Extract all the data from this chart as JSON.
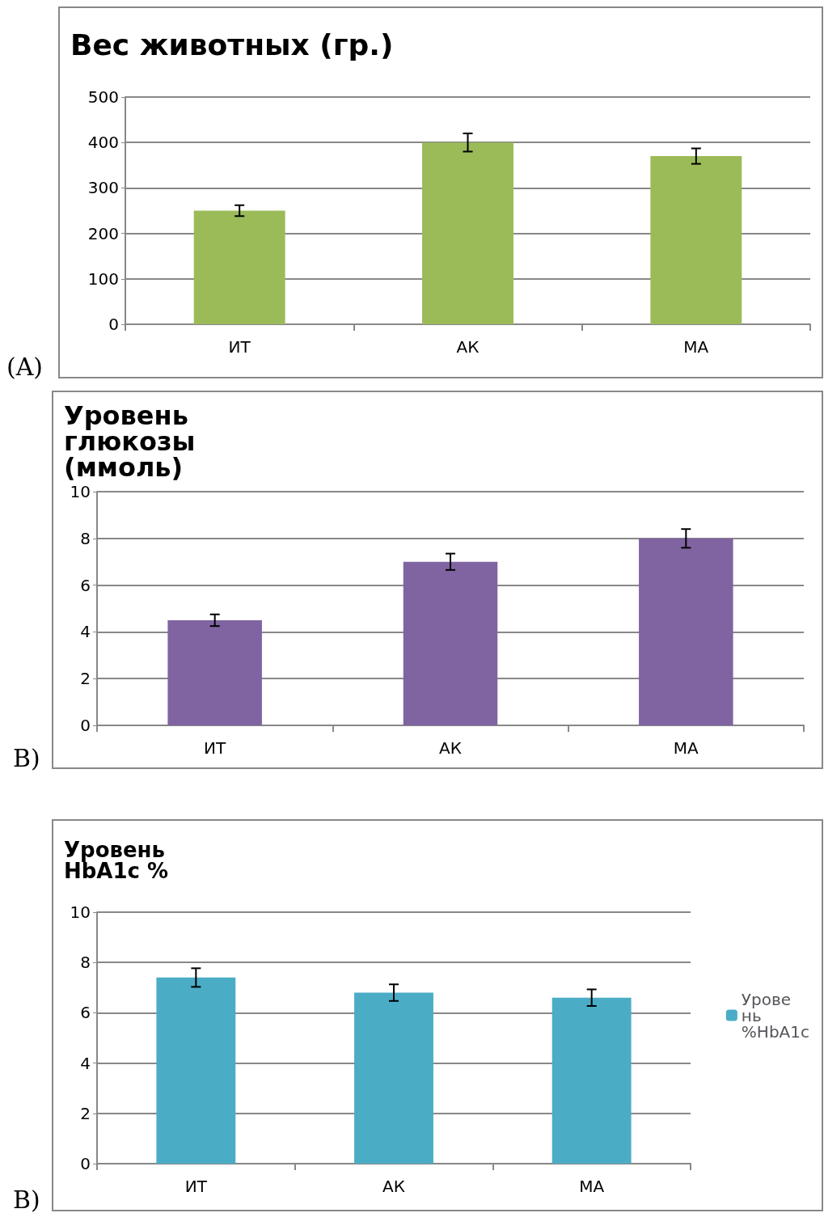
{
  "chart_data": [
    {
      "type": "bar",
      "title": "Вес животных (гр.)",
      "categories": [
        "ИТ",
        "АК",
        "МА"
      ],
      "series": [
        {
          "color": "#9bbb59",
          "values": [
            250,
            400,
            370
          ],
          "errors": [
            12,
            20,
            17
          ]
        }
      ],
      "ylim": [
        0,
        500
      ],
      "yticks": [
        0,
        100,
        200,
        300,
        400,
        500
      ],
      "grid": "y",
      "legend": false,
      "annotations": [
        "(A)"
      ]
    },
    {
      "type": "bar",
      "title": "Уровень глюкозы (ммоль)",
      "categories": [
        "ИТ",
        "АК",
        "МА"
      ],
      "series": [
        {
          "color": "#8064a2",
          "values": [
            4.5,
            7,
            8
          ],
          "errors": [
            0.25,
            0.35,
            0.4
          ]
        }
      ],
      "ylim": [
        0,
        10
      ],
      "yticks": [
        0,
        2,
        4,
        6,
        8,
        10
      ],
      "grid": "y",
      "legend": false,
      "annotations": [
        "B)"
      ]
    },
    {
      "type": "bar",
      "title": "Уровень HbA1c %",
      "categories": [
        "ИТ",
        "АК",
        "МА"
      ],
      "series": [
        {
          "name": "Уровень %HbA1c",
          "color": "#4bacc6",
          "values": [
            7.4,
            6.8,
            6.6
          ],
          "errors": [
            0.37,
            0.33,
            0.33
          ]
        }
      ],
      "ylim": [
        0,
        10
      ],
      "yticks": [
        0,
        2,
        4,
        6,
        8,
        10
      ],
      "grid": "y",
      "legend": "right",
      "annotations": [
        "B)"
      ]
    }
  ]
}
